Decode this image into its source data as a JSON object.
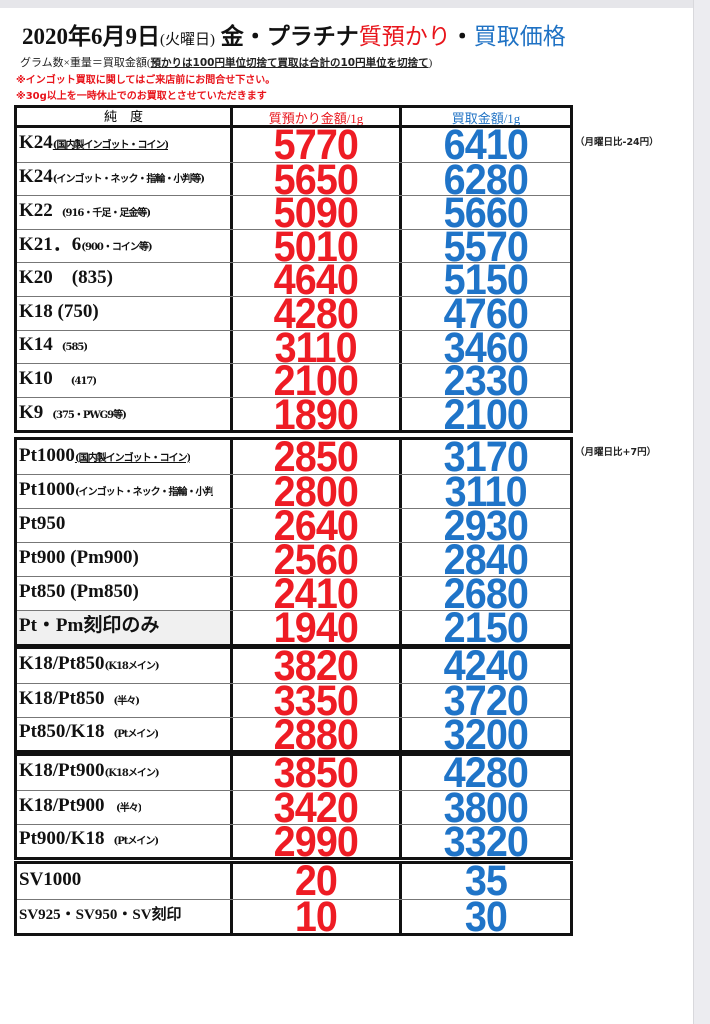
{
  "title": {
    "date": "2020年6月9日",
    "weekday": "(火曜日)",
    "metal": "金・プラチナ",
    "pawn": "質預かり",
    "sep": "・",
    "buy": "買取価格"
  },
  "subtitle": {
    "formula": "グラム数×重量＝買取金額(",
    "rule": "預かりは100円単位切捨て買取は合計の10円単位を切捨て",
    "close": ")"
  },
  "notes": [
    "※インゴット買取に関してはご来店前にお問合せ下さい。",
    "※30g以上を一時休止でのお買取とさせていただきます"
  ],
  "headers": {
    "purity": "純　度",
    "pawn": "質預かり金額/1g",
    "buy": "買取金額/1g"
  },
  "side_notes": {
    "gold": "（月曜日比-24円）",
    "platinum": "（月曜日比+7円）"
  },
  "colors": {
    "pawn": "#ee1c24",
    "buy": "#1f74c8"
  },
  "groups": [
    {
      "rows": [
        {
          "name": "K24",
          "detail": "(国内製インゴット・コイン)",
          "pawn": "5770",
          "buy": "6410"
        },
        {
          "name": "K24",
          "detail": "(インゴット・ネック・指輪・小判等)",
          "pawn": "5650",
          "buy": "6280"
        },
        {
          "name": "K22",
          "detail": "　(916・千足・足金等)",
          "pawn": "5090",
          "buy": "5660"
        },
        {
          "name": "K21．6",
          "detail": "(900・コイン等)",
          "pawn": "5010",
          "buy": "5570"
        },
        {
          "name": "K20　(835)",
          "detail": "",
          "pawn": "4640",
          "buy": "5150"
        },
        {
          "name": "K18 (750)",
          "detail": "",
          "pawn": "4280",
          "buy": "4760"
        },
        {
          "name": "K14",
          "detail": "　(585)",
          "pawn": "3110",
          "buy": "3460"
        },
        {
          "name": "K10",
          "detail": "　　(417)",
          "pawn": "2100",
          "buy": "2330"
        },
        {
          "name": "K9",
          "detail": "　(375・PWG9等)",
          "pawn": "1890",
          "buy": "2100"
        }
      ]
    },
    {
      "rows": [
        {
          "name": "Pt1000",
          "detail": "(国内製インゴット・コイン)",
          "pawn": "2850",
          "buy": "3170"
        },
        {
          "name": "Pt1000",
          "detail": "(インゴット・ネック・指輪・小判",
          "pawn": "2800",
          "buy": "3110"
        },
        {
          "name": "Pt950",
          "detail": "",
          "pawn": "2640",
          "buy": "2930"
        },
        {
          "name": "Pt900 (Pm900)",
          "detail": "",
          "pawn": "2560",
          "buy": "2840"
        },
        {
          "name": "Pt850 (Pm850)",
          "detail": "",
          "pawn": "2410",
          "buy": "2680"
        },
        {
          "name": "Pt・Pm刻印のみ",
          "detail": "",
          "pawn": "1940",
          "buy": "2150"
        }
      ]
    },
    {
      "rows": [
        {
          "name": "K18/Pt850",
          "detail": "(K18メイン)",
          "pawn": "3820",
          "buy": "4240"
        },
        {
          "name": "K18/Pt850",
          "detail": "　(半々)",
          "pawn": "3350",
          "buy": "3720"
        },
        {
          "name": "Pt850/K18",
          "detail": "　(Ptメイン)",
          "pawn": "2880",
          "buy": "3200"
        }
      ]
    },
    {
      "rows": [
        {
          "name": "K18/Pt900",
          "detail": "(K18メイン)",
          "pawn": "3850",
          "buy": "4280"
        },
        {
          "name": "K18/Pt900",
          "detail": "　 (半々)",
          "pawn": "3420",
          "buy": "3800"
        },
        {
          "name": "Pt900/K18",
          "detail": "　(Ptメイン)",
          "pawn": "2990",
          "buy": "3320"
        }
      ]
    },
    {
      "rows": [
        {
          "name": "SV1000",
          "detail": "",
          "pawn": "20",
          "buy": "35"
        },
        {
          "name": "SV925・SV950・SV刻印",
          "detail": "",
          "pawn": "10",
          "buy": "30"
        }
      ]
    }
  ]
}
